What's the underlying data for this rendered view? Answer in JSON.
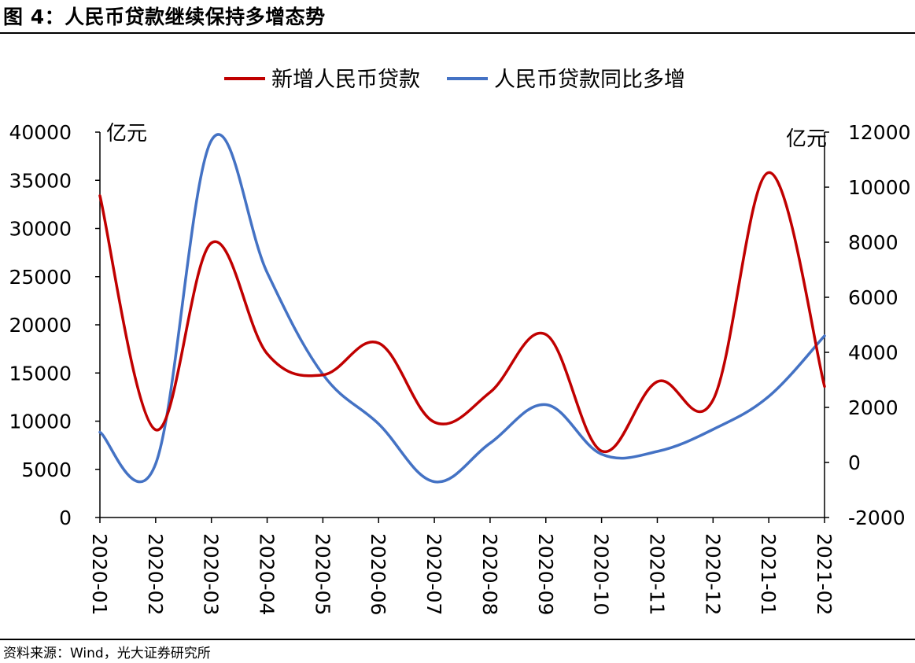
{
  "title": "图 4：人民币贷款继续保持多增态势",
  "source": "资料来源：Wind，光大证券研究所",
  "chart_data": {
    "type": "line",
    "categories": [
      "2020-01",
      "2020-02",
      "2020-03",
      "2020-04",
      "2020-05",
      "2020-06",
      "2020-07",
      "2020-08",
      "2020-09",
      "2020-10",
      "2020-11",
      "2020-12",
      "2021-01",
      "2021-02"
    ],
    "series": [
      {
        "name": "新增人民币贷款",
        "axis": "left",
        "color": "#C00000",
        "values": [
          33400,
          9100,
          28500,
          17000,
          14800,
          18100,
          9900,
          13000,
          19000,
          6900,
          14100,
          12200,
          35800,
          13600
        ]
      },
      {
        "name": "人民币贷款同比多增",
        "axis": "right",
        "color": "#4472C4",
        "values": [
          1100,
          -50,
          11700,
          6900,
          3200,
          1400,
          -700,
          700,
          2100,
          300,
          400,
          1200,
          2400,
          4600
        ]
      }
    ],
    "y_left": {
      "unit": "亿元",
      "min": 0,
      "max": 40000,
      "ticks": [
        "0",
        "5000",
        "10000",
        "15000",
        "20000",
        "25000",
        "30000",
        "35000",
        "40000"
      ]
    },
    "y_right": {
      "unit": "亿元",
      "min": -2000,
      "max": 12000,
      "ticks": [
        "-2000",
        "0",
        "2000",
        "4000",
        "6000",
        "8000",
        "10000",
        "12000"
      ]
    },
    "legend": "top-center",
    "grid": false
  }
}
